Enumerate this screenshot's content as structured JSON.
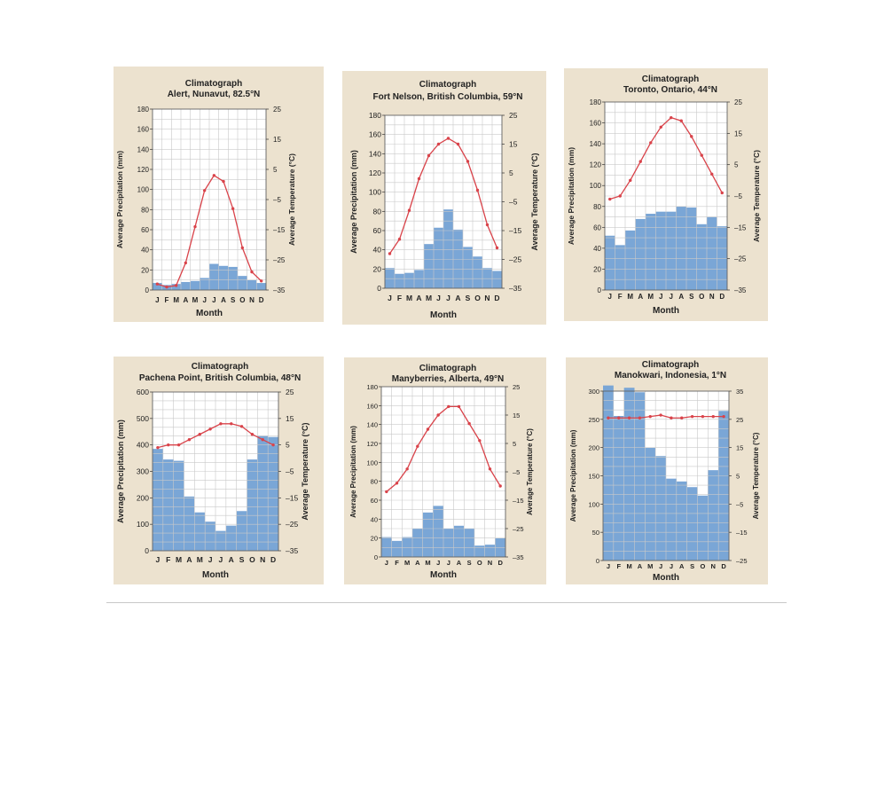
{
  "colors": {
    "bar": "#7aa6d6",
    "line": "#d9434a",
    "grid": "#c9c9c9",
    "panel": "#ece2cf",
    "text": "#222222"
  },
  "chart_data": [
    {
      "type": "bar+line",
      "title": "Climatograph",
      "subtitle": "Alert, Nunavut, 82.5°N",
      "xlabel": "Month",
      "ylabel_left": "Average Precipitation (mm)",
      "ylabel_right": "Average Temperature (°C)",
      "categories": [
        "J",
        "F",
        "M",
        "A",
        "M",
        "J",
        "J",
        "A",
        "S",
        "O",
        "N",
        "D"
      ],
      "precip_ylim": [
        0,
        180
      ],
      "precip_ticks": [
        0,
        20,
        40,
        60,
        80,
        100,
        120,
        140,
        160,
        180
      ],
      "temp_ylim": [
        -35,
        25
      ],
      "temp_ticks": [
        -35,
        -25,
        -15,
        -5,
        5,
        15,
        25
      ],
      "temp_tick_labels": [
        "–35",
        "–25",
        "–15",
        "–5",
        "5",
        "15",
        "25"
      ],
      "precipitation": [
        7,
        5,
        6,
        8,
        9,
        12,
        26,
        24,
        23,
        14,
        10,
        7
      ],
      "temperature": [
        -33,
        -34,
        -33.5,
        -26,
        -14,
        -2,
        3,
        1,
        -8,
        -21,
        -29,
        -32
      ]
    },
    {
      "type": "bar+line",
      "title": "Climatograph",
      "subtitle": "Fort Nelson, British Columbia, 59°N",
      "xlabel": "Month",
      "ylabel_left": "Average Precipitation (mm)",
      "ylabel_right": "Average Temperature (°C)",
      "categories": [
        "J",
        "F",
        "M",
        "A",
        "M",
        "J",
        "J",
        "A",
        "S",
        "O",
        "N",
        "D"
      ],
      "precip_ylim": [
        0,
        180
      ],
      "precip_ticks": [
        0,
        20,
        40,
        60,
        80,
        100,
        120,
        140,
        160,
        180
      ],
      "temp_ylim": [
        -35,
        25
      ],
      "temp_ticks": [
        -35,
        -25,
        -15,
        -5,
        5,
        15,
        25
      ],
      "temp_tick_labels": [
        "–35",
        "–25",
        "–15",
        "–5",
        "5",
        "15",
        "25"
      ],
      "precipitation": [
        21,
        15,
        16,
        19,
        46,
        63,
        82,
        61,
        43,
        33,
        21,
        18
      ],
      "temperature": [
        -23,
        -18,
        -8,
        3,
        11,
        15,
        17,
        15,
        9,
        -1,
        -13,
        -21
      ]
    },
    {
      "type": "bar+line",
      "title": "Climatograph",
      "subtitle": "Toronto, Ontario, 44°N",
      "xlabel": "Month",
      "ylabel_left": "Average Precipitation (mm)",
      "ylabel_right": "Average Temperature (°C)",
      "categories": [
        "J",
        "F",
        "M",
        "A",
        "M",
        "J",
        "J",
        "A",
        "S",
        "O",
        "N",
        "D"
      ],
      "precip_ylim": [
        0,
        180
      ],
      "precip_ticks": [
        0,
        20,
        40,
        60,
        80,
        100,
        120,
        140,
        160,
        180
      ],
      "temp_ylim": [
        -35,
        25
      ],
      "temp_ticks": [
        -35,
        -25,
        -15,
        -5,
        5,
        15,
        25
      ],
      "temp_tick_labels": [
        "–35",
        "–25",
        "–15",
        "–5",
        "5",
        "15",
        "25"
      ],
      "precipitation": [
        52,
        43,
        57,
        68,
        73,
        75,
        75,
        80,
        79,
        63,
        70,
        61
      ],
      "temperature": [
        -6,
        -5,
        0,
        6,
        12,
        17,
        20,
        19,
        14,
        8,
        2,
        -4
      ]
    },
    {
      "type": "bar+line",
      "title": "Climatograph",
      "subtitle": "Pachena Point, British Columbia, 48°N",
      "xlabel": "Month",
      "ylabel_left": "Average Precipitation (mm)",
      "ylabel_right": "Average Temperature (°C)",
      "categories": [
        "J",
        "F",
        "M",
        "A",
        "M",
        "J",
        "J",
        "A",
        "S",
        "O",
        "N",
        "D"
      ],
      "precip_ylim": [
        0,
        600
      ],
      "precip_ticks": [
        0,
        100,
        200,
        300,
        400,
        500,
        600
      ],
      "temp_ylim": [
        -35,
        25
      ],
      "temp_ticks": [
        -35,
        -25,
        -15,
        -5,
        5,
        15,
        25
      ],
      "temp_tick_labels": [
        "–35",
        "–25",
        "–15",
        "–5",
        "5",
        "15",
        "25"
      ],
      "precipitation": [
        385,
        345,
        340,
        205,
        145,
        110,
        75,
        95,
        150,
        345,
        435,
        430
      ],
      "temperature": [
        4,
        5,
        5,
        7,
        9,
        11,
        13,
        13,
        12,
        9,
        7,
        5
      ]
    },
    {
      "type": "bar+line",
      "title": "Climatograph",
      "subtitle": "Manyberries, Alberta, 49°N",
      "xlabel": "Month",
      "ylabel_left": "Average Precipitation (mm)",
      "ylabel_right": "Average Temperature (°C)",
      "categories": [
        "J",
        "F",
        "M",
        "A",
        "M",
        "J",
        "J",
        "A",
        "S",
        "O",
        "N",
        "D"
      ],
      "precip_ylim": [
        0,
        180
      ],
      "precip_ticks": [
        0,
        20,
        40,
        60,
        80,
        100,
        120,
        140,
        160,
        180
      ],
      "temp_ylim": [
        -35,
        25
      ],
      "temp_ticks": [
        -35,
        -25,
        -15,
        -5,
        5,
        15,
        25
      ],
      "temp_tick_labels": [
        "–35",
        "–25",
        "–15",
        "–5",
        "5",
        "15",
        "25"
      ],
      "precipitation": [
        21,
        17,
        21,
        30,
        47,
        54,
        30,
        33,
        30,
        12,
        13,
        20
      ],
      "temperature": [
        -12,
        -9,
        -4,
        4,
        10,
        15,
        18,
        18,
        12,
        6,
        -4,
        -10
      ]
    },
    {
      "type": "bar+line",
      "title": "Climatograph",
      "subtitle": "Manokwari, Indonesia, 1°N",
      "xlabel": "Month",
      "ylabel_left": "Average Precipitation (mm)",
      "ylabel_right": "Average Temperature (°C)",
      "categories": [
        "J",
        "F",
        "M",
        "A",
        "M",
        "J",
        "J",
        "A",
        "S",
        "O",
        "N",
        "D"
      ],
      "precip_ylim": [
        0,
        300
      ],
      "precip_ticks": [
        0,
        50,
        100,
        150,
        200,
        250,
        300
      ],
      "temp_ylim": [
        -25,
        35
      ],
      "temp_ticks": [
        -25,
        -15,
        -5,
        5,
        15,
        25,
        35
      ],
      "temp_tick_labels": [
        "–25",
        "–15",
        "–5",
        "5",
        "15",
        "25",
        "35"
      ],
      "precipitation": [
        310,
        256,
        306,
        298,
        200,
        185,
        145,
        140,
        130,
        115,
        160,
        265
      ],
      "temperature": [
        25.5,
        25.5,
        25.5,
        25.5,
        26,
        26.5,
        25.5,
        25.5,
        26,
        26,
        26,
        26
      ]
    }
  ]
}
